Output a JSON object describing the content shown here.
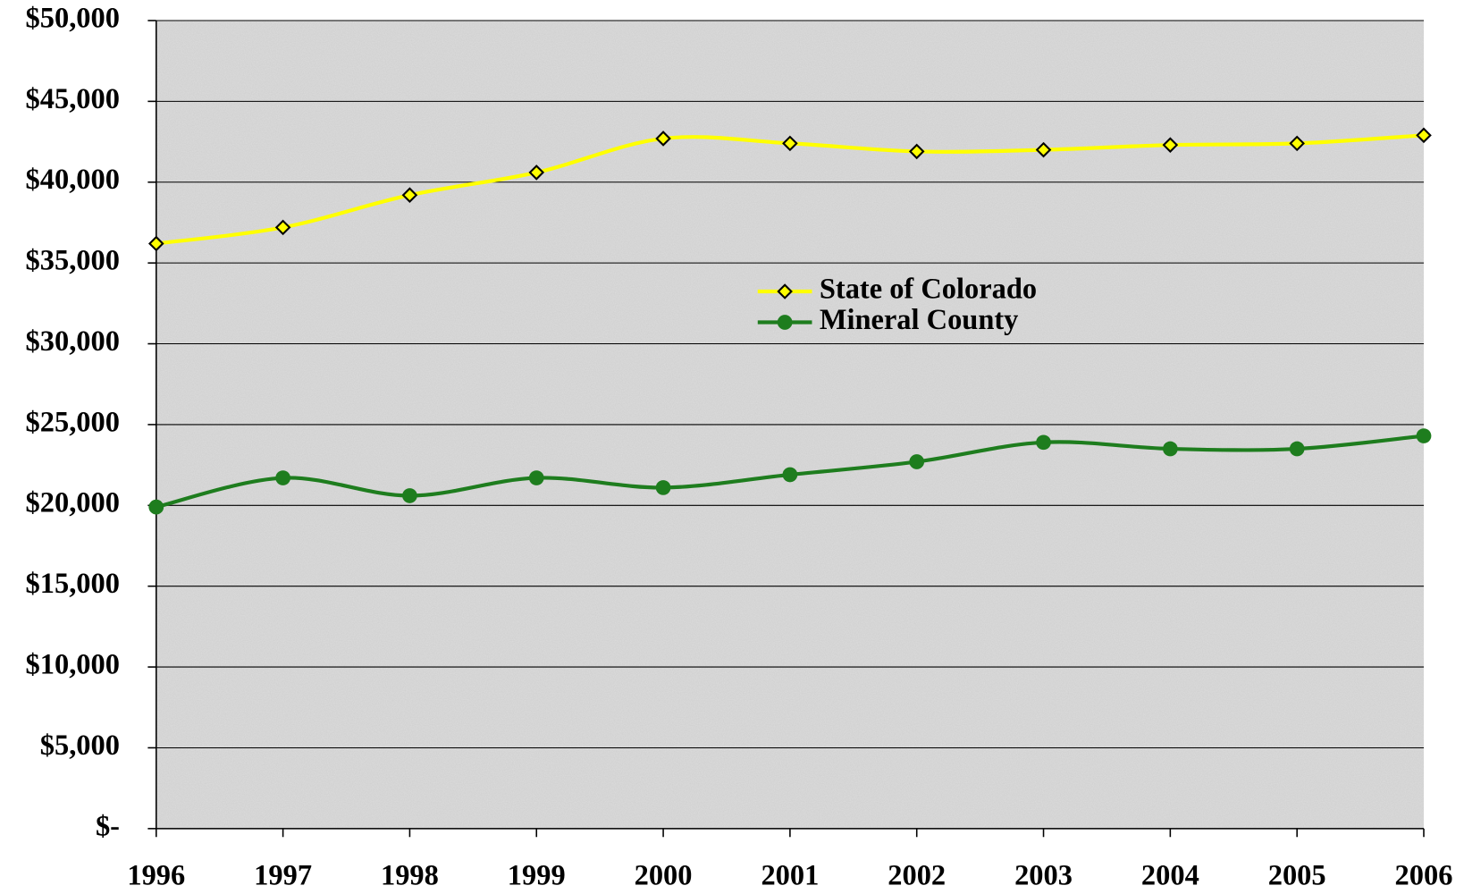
{
  "chart_data": {
    "type": "line",
    "categories": [
      "1996",
      "1997",
      "1998",
      "1999",
      "2000",
      "2001",
      "2002",
      "2003",
      "2004",
      "2005",
      "2006"
    ],
    "series": [
      {
        "name": "State of Colorado",
        "color": "#ffff00",
        "marker": "diamond",
        "values": [
          36200,
          37200,
          39200,
          40600,
          42700,
          42400,
          41900,
          42000,
          42300,
          42400,
          42900
        ]
      },
      {
        "name": "Mineral County",
        "color": "#1e7d1e",
        "marker": "circle",
        "values": [
          19900,
          21700,
          20600,
          21700,
          21100,
          21900,
          22700,
          23900,
          23500,
          23500,
          24300
        ]
      }
    ],
    "ylim": [
      0,
      50000
    ],
    "yticks": [
      {
        "value": 0,
        "label": "$-"
      },
      {
        "value": 5000,
        "label": "$5,000"
      },
      {
        "value": 10000,
        "label": "$10,000"
      },
      {
        "value": 15000,
        "label": "$15,000"
      },
      {
        "value": 20000,
        "label": "$20,000"
      },
      {
        "value": 25000,
        "label": "$25,000"
      },
      {
        "value": 30000,
        "label": "$30,000"
      },
      {
        "value": 35000,
        "label": "$35,000"
      },
      {
        "value": 40000,
        "label": "$40,000"
      },
      {
        "value": 45000,
        "label": "$45,000"
      },
      {
        "value": 50000,
        "label": "$50,000"
      }
    ],
    "grid": true,
    "smooth": true
  }
}
